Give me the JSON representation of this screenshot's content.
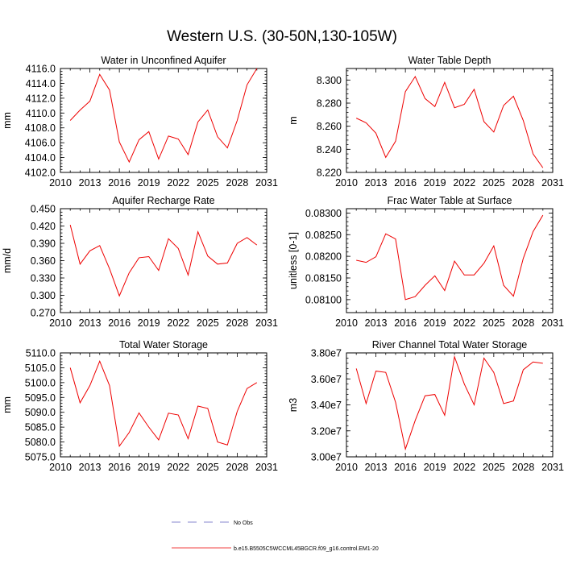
{
  "figure": {
    "title": "Western U.S. (30-50N,130-105W)"
  },
  "legend": {
    "entries": [
      {
        "label": "No Obs",
        "style": "dashed",
        "color": "#6060c0"
      },
      {
        "label": "b.e15.B5505C5WCCML45BGCR.f09_g16.control.EM1-20",
        "style": "solid",
        "color": "#ee0000"
      }
    ]
  },
  "series_color": "#ee0000",
  "chart_data": [
    {
      "type": "line",
      "title": "Water in Unconfined Aquifer",
      "ylabel": "mm",
      "xlim": [
        2010,
        2031
      ],
      "xticks": [
        "2010",
        "2013",
        "2016",
        "2019",
        "2022",
        "2025",
        "2028",
        "2031"
      ],
      "ylim": [
        4102,
        4116
      ],
      "yticks": [
        "4102.0",
        "4104.0",
        "4106.0",
        "4108.0",
        "4110.0",
        "4112.0",
        "4114.0",
        "4116.0"
      ],
      "x": [
        2011,
        2012,
        2013,
        2014,
        2015,
        2016,
        2017,
        2018,
        2019,
        2020,
        2021,
        2022,
        2023,
        2024,
        2025,
        2026,
        2027,
        2028,
        2029,
        2030
      ],
      "values": [
        4109.0,
        4110.4,
        4111.6,
        4115.2,
        4113.1,
        4106.1,
        4103.4,
        4106.4,
        4107.5,
        4103.8,
        4106.9,
        4106.5,
        4104.4,
        4108.8,
        4110.4,
        4106.8,
        4105.3,
        4109.0,
        4113.8,
        4116.0
      ]
    },
    {
      "type": "line",
      "title": "Water Table Depth",
      "ylabel": "m",
      "xlim": [
        2010,
        2031
      ],
      "xticks": [
        "2010",
        "2013",
        "2016",
        "2019",
        "2022",
        "2025",
        "2028",
        "2031"
      ],
      "ylim": [
        8.22,
        8.31
      ],
      "yticks": [
        "8.220",
        "8.240",
        "8.260",
        "8.280",
        "8.300"
      ],
      "x": [
        2011,
        2012,
        2013,
        2014,
        2015,
        2016,
        2017,
        2018,
        2019,
        2020,
        2021,
        2022,
        2023,
        2024,
        2025,
        2026,
        2027,
        2028,
        2029,
        2030
      ],
      "values": [
        8.267,
        8.263,
        8.254,
        8.233,
        8.247,
        8.29,
        8.303,
        8.284,
        8.277,
        8.298,
        8.276,
        8.279,
        8.292,
        8.264,
        8.255,
        8.278,
        8.286,
        8.265,
        8.236,
        8.224
      ]
    },
    {
      "type": "line",
      "title": "Aquifer Recharge Rate",
      "ylabel": "mm/d",
      "xlim": [
        2010,
        2031
      ],
      "xticks": [
        "2010",
        "2013",
        "2016",
        "2019",
        "2022",
        "2025",
        "2028",
        "2031"
      ],
      "ylim": [
        0.27,
        0.45
      ],
      "yticks": [
        "0.270",
        "0.300",
        "0.330",
        "0.360",
        "0.390",
        "0.420",
        "0.450"
      ],
      "x": [
        2011,
        2012,
        2013,
        2014,
        2015,
        2016,
        2017,
        2018,
        2019,
        2020,
        2021,
        2022,
        2023,
        2024,
        2025,
        2026,
        2027,
        2028,
        2029,
        2030
      ],
      "values": [
        0.422,
        0.354,
        0.377,
        0.386,
        0.346,
        0.299,
        0.339,
        0.365,
        0.367,
        0.343,
        0.398,
        0.381,
        0.335,
        0.41,
        0.368,
        0.354,
        0.356,
        0.39,
        0.4,
        0.387
      ]
    },
    {
      "type": "line",
      "title": "Frac Water Table at Surface",
      "ylabel": "unitless [0-1]",
      "xlim": [
        2010,
        2031
      ],
      "xticks": [
        "2010",
        "2013",
        "2016",
        "2019",
        "2022",
        "2025",
        "2028",
        "2031"
      ],
      "ylim": [
        0.0807,
        0.0831
      ],
      "yticks": [
        "0.08100",
        "0.08150",
        "0.08200",
        "0.08250",
        "0.08300"
      ],
      "x": [
        2011,
        2012,
        2013,
        2014,
        2015,
        2016,
        2017,
        2018,
        2019,
        2020,
        2021,
        2022,
        2023,
        2024,
        2025,
        2026,
        2027,
        2028,
        2029,
        2030
      ],
      "values": [
        0.08191,
        0.08186,
        0.08199,
        0.08252,
        0.0824,
        0.081,
        0.08107,
        0.08133,
        0.08155,
        0.08121,
        0.08189,
        0.08157,
        0.08157,
        0.08184,
        0.08224,
        0.08133,
        0.08108,
        0.08195,
        0.08257,
        0.08295
      ]
    },
    {
      "type": "line",
      "title": "Total Water Storage",
      "ylabel": "mm",
      "xlim": [
        2010,
        2031
      ],
      "xticks": [
        "2010",
        "2013",
        "2016",
        "2019",
        "2022",
        "2025",
        "2028",
        "2031"
      ],
      "ylim": [
        5075,
        5110
      ],
      "yticks": [
        "5075.0",
        "5080.0",
        "5085.0",
        "5090.0",
        "5095.0",
        "5100.0",
        "5105.0",
        "5110.0"
      ],
      "x": [
        2011,
        2012,
        2013,
        2014,
        2015,
        2016,
        2017,
        2018,
        2019,
        2020,
        2021,
        2022,
        2023,
        2024,
        2025,
        2026,
        2027,
        2028,
        2029,
        2030
      ],
      "values": [
        5105.0,
        5093.2,
        5099.0,
        5107.2,
        5099.0,
        5078.6,
        5083.2,
        5089.8,
        5085.0,
        5080.7,
        5089.7,
        5089.1,
        5081.1,
        5092.1,
        5091.3,
        5080.0,
        5079.0,
        5090.3,
        5098.0,
        5100.0
      ]
    },
    {
      "type": "line",
      "title": "River Channel Total Water Storage",
      "ylabel": "m3",
      "xlim": [
        2010,
        2031
      ],
      "xticks": [
        "2010",
        "2013",
        "2016",
        "2019",
        "2022",
        "2025",
        "2028",
        "2031"
      ],
      "ylim": [
        30000000,
        38000000
      ],
      "yticks": [
        "3.00e7",
        "3.20e7",
        "3.40e7",
        "3.60e7",
        "3.80e7"
      ],
      "x": [
        2011,
        2012,
        2013,
        2014,
        2015,
        2016,
        2017,
        2018,
        2019,
        2020,
        2021,
        2022,
        2023,
        2024,
        2025,
        2026,
        2027,
        2028,
        2029,
        2030
      ],
      "values": [
        36800000,
        34100000,
        36600000,
        36500000,
        34200000,
        30600000,
        32800000,
        34700000,
        34800000,
        33200000,
        37700000,
        35600000,
        34000000,
        37600000,
        36500000,
        34100000,
        34300000,
        36700000,
        37300000,
        37200000
      ]
    }
  ]
}
